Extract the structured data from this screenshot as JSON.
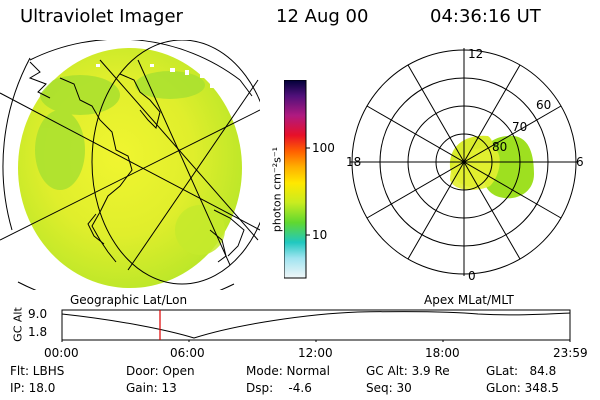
{
  "header": {
    "instrument": "Ultraviolet Imager",
    "date": "12 Aug 00",
    "time": "04:36:16 UT"
  },
  "colorbar": {
    "unit_label": "photon cm⁻²s⁻¹",
    "tick_100": "100",
    "tick_10": "10",
    "colors": [
      "#000040",
      "#3a0a68",
      "#7a1aa0",
      "#c0187a",
      "#e81030",
      "#ff5a00",
      "#ffa000",
      "#ffe000",
      "#d8ef20",
      "#90e020",
      "#30d050",
      "#20c8c8",
      "#a0e8f0",
      "#e8f4f8"
    ]
  },
  "polar_plot": {
    "label_12": "12",
    "label_18": "18",
    "label_6": "6",
    "label_0": "0",
    "ring_60": "60",
    "ring_70": "70",
    "ring_80": "80"
  },
  "geo_label": "Geographic Lat/Lon",
  "apex_label": "Apex MLat/MLT",
  "altitude_plot": {
    "ylabel": "GC Alt",
    "ytick_top": "9.0",
    "ytick_bottom": "1.8",
    "xticks": [
      "00:00",
      "06:00",
      "12:00",
      "18:00",
      "23:59"
    ]
  },
  "footer": {
    "flt": "Flt: LBHS",
    "ip": "IP: 18.0",
    "door": "Door: Open",
    "gain": "Gain: 13",
    "mode": "Mode: Normal",
    "dsp": "Dsp:    -4.6",
    "gc_alt": "GC Alt: 3.9 Re",
    "seq": "Seq: 30",
    "glat": "GLat:   84.8",
    "glon": "GLon: 348.5"
  },
  "colors": {
    "aurora_fill": "#e2ef30",
    "aurora_green": "#9ee020",
    "marker": "#e00000"
  }
}
